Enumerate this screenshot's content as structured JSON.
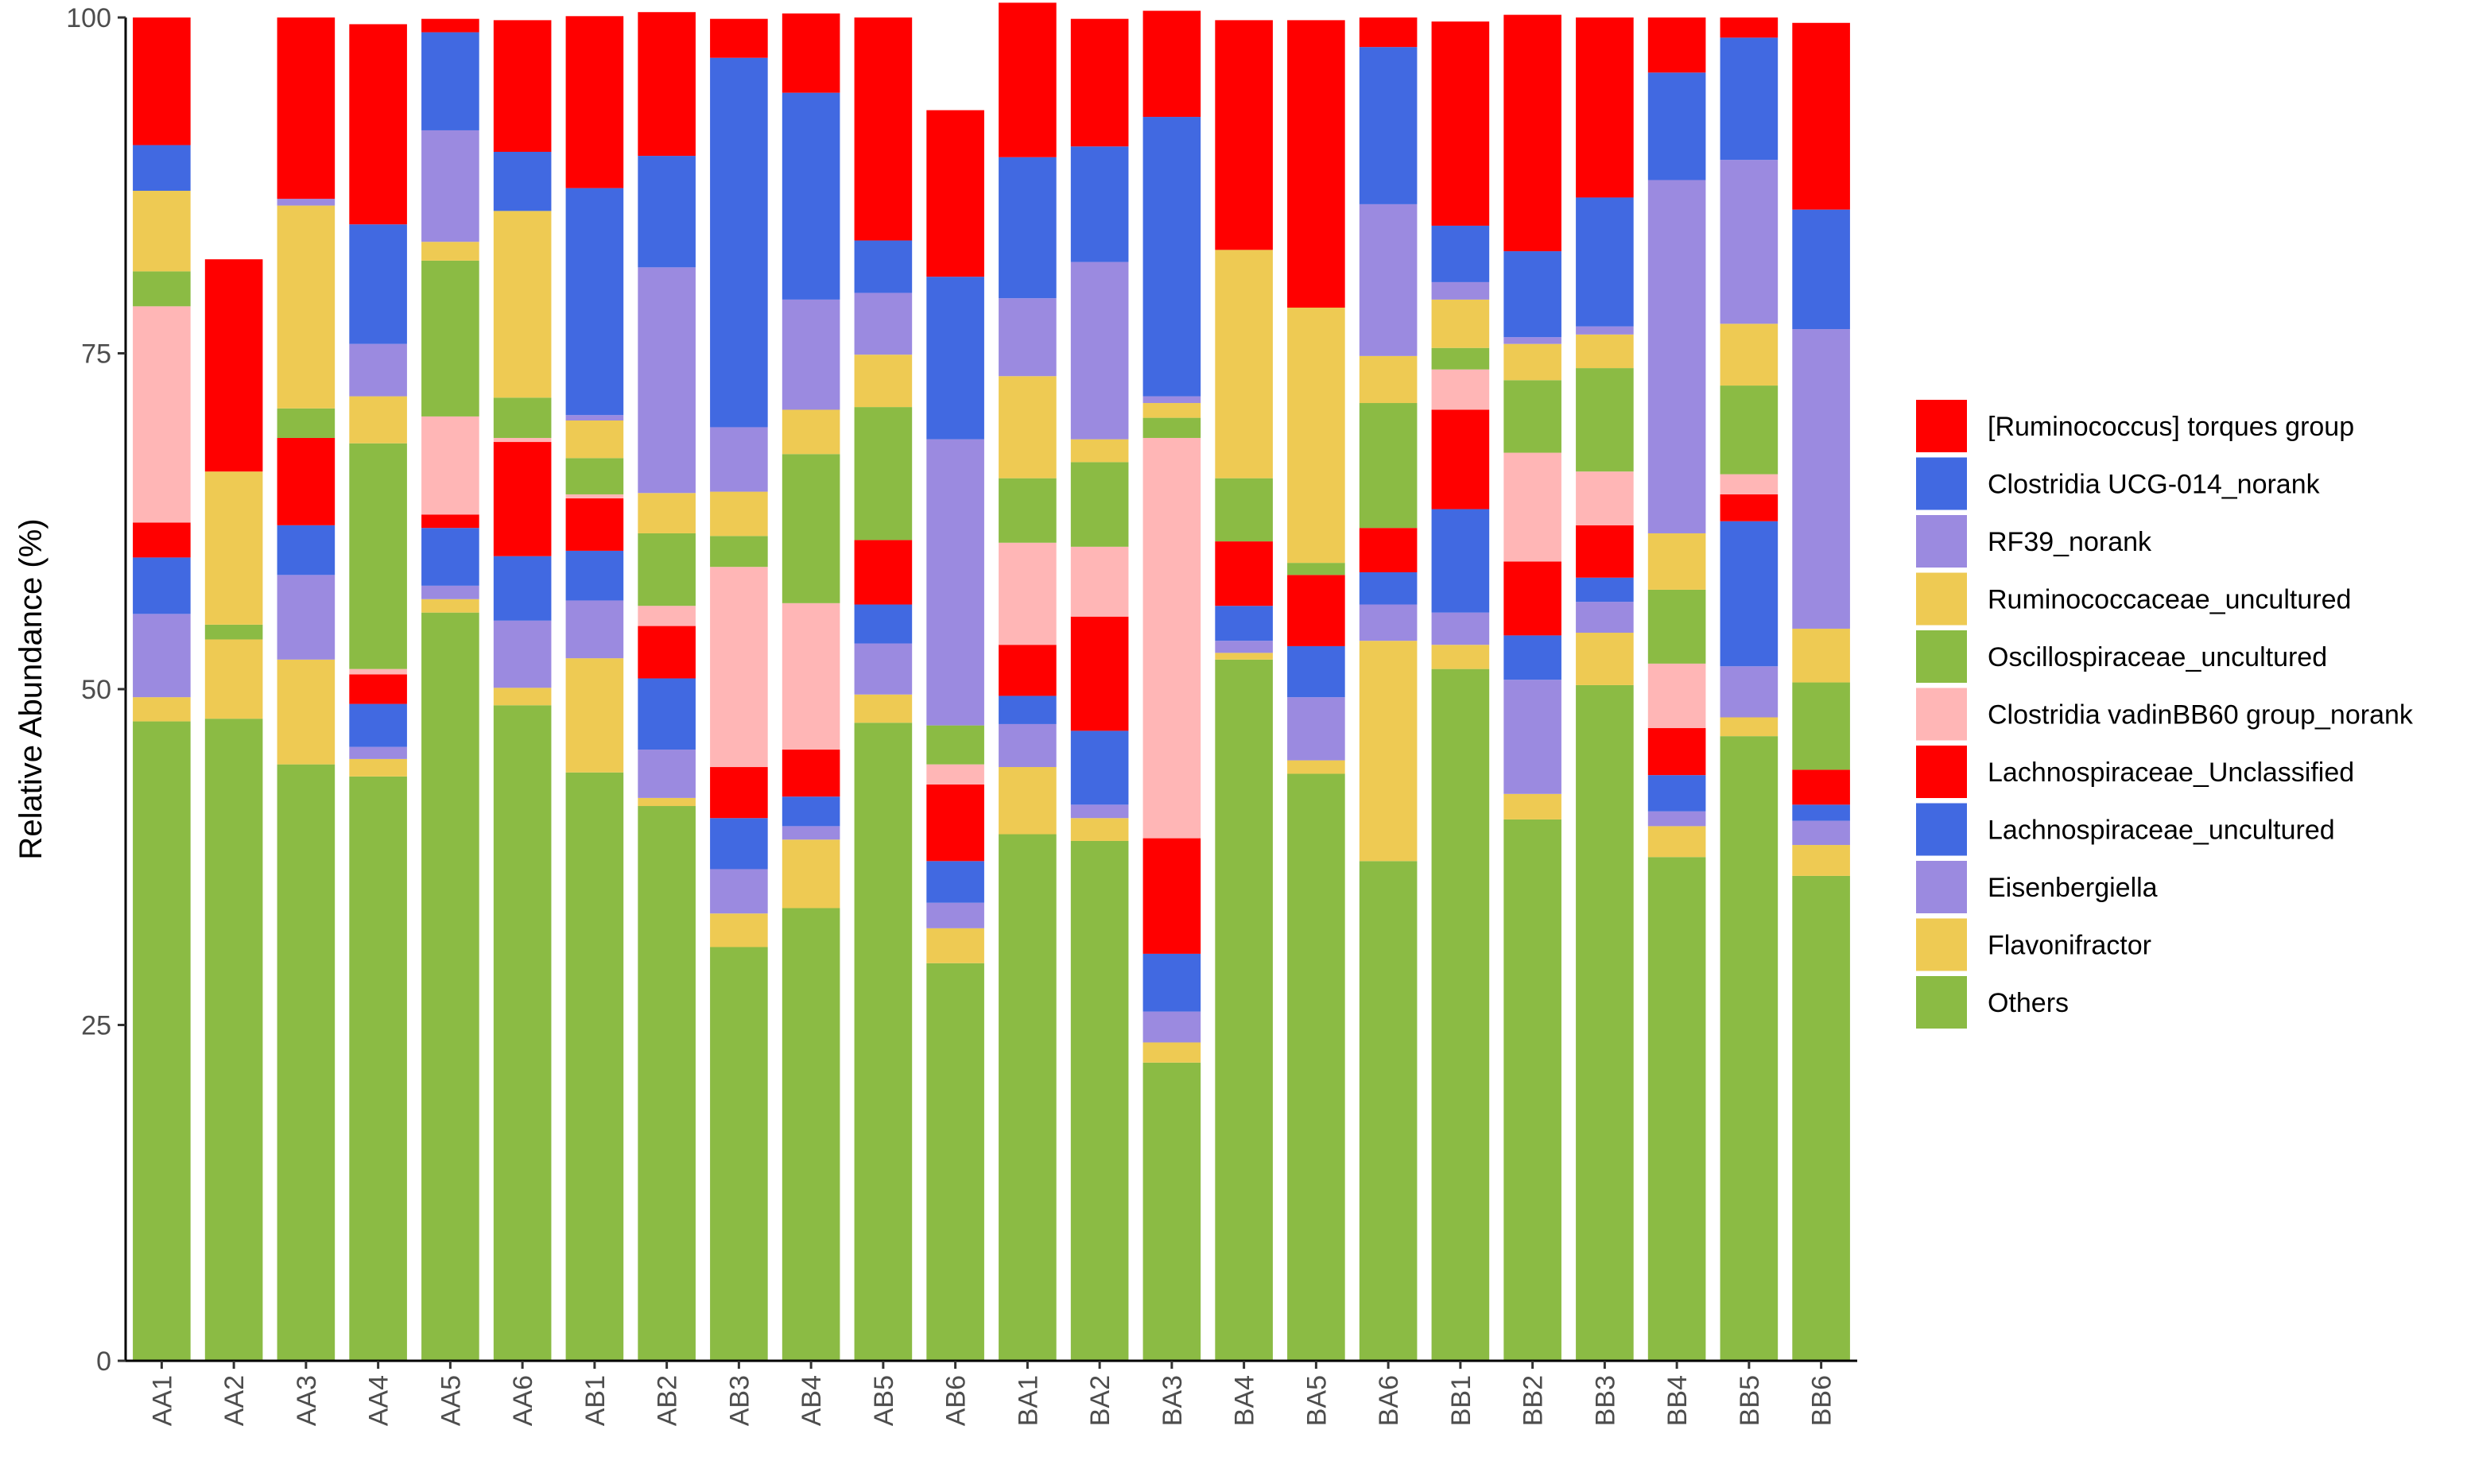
{
  "chart_data": {
    "type": "bar",
    "stacked": true,
    "title": "",
    "xlabel": "",
    "ylabel": "Relative Abundance (%)",
    "ylim": [
      0,
      100
    ],
    "yticks": [
      0,
      25,
      50,
      75,
      100
    ],
    "grid": false,
    "legend_position": "right",
    "categories": [
      "AA1",
      "AA2",
      "AA3",
      "AA4",
      "AA5",
      "AA6",
      "AB1",
      "AB2",
      "AB3",
      "AB4",
      "AB5",
      "AB6",
      "BA1",
      "BA2",
      "BA3",
      "BA4",
      "BA5",
      "BA6",
      "BB1",
      "BB2",
      "BB3",
      "BB4",
      "BB5",
      "BB6"
    ],
    "series": [
      {
        "name": "Others",
        "color": "#8BBB44",
        "values": [
          47.6,
          47.8,
          44.4,
          43.5,
          55.7,
          48.8,
          43.8,
          41.3,
          30.8,
          33.7,
          47.5,
          29.6,
          39.2,
          38.7,
          22.2,
          52.2,
          43.7,
          37.2,
          51.5,
          40.3,
          50.3,
          37.5,
          46.5,
          36.1
        ]
      },
      {
        "name": "Flavonifractor",
        "color": "#EECA53",
        "values": [
          1.8,
          5.9,
          7.8,
          1.3,
          1.0,
          1.3,
          8.5,
          0.6,
          2.5,
          5.1,
          2.1,
          2.6,
          5.0,
          1.7,
          1.5,
          0.5,
          1.0,
          16.4,
          1.8,
          1.9,
          3.9,
          2.3,
          1.4,
          2.3
        ]
      },
      {
        "name": "Eisenbergiella",
        "color": "#9B8AE0",
        "values": [
          6.2,
          0.0,
          6.3,
          0.9,
          1.0,
          5.0,
          4.3,
          3.6,
          3.3,
          1.0,
          3.8,
          1.9,
          3.2,
          1.0,
          2.3,
          0.9,
          4.7,
          2.7,
          2.4,
          8.5,
          2.3,
          1.1,
          3.8,
          1.8
        ]
      },
      {
        "name": "Lachnospiraceae_uncultured",
        "color": "#4169E1",
        "values": [
          4.2,
          0.0,
          3.7,
          3.2,
          4.3,
          4.8,
          3.7,
          5.3,
          3.8,
          2.2,
          2.9,
          3.1,
          2.1,
          5.5,
          4.3,
          2.6,
          3.8,
          2.4,
          7.7,
          3.3,
          1.8,
          2.7,
          10.8,
          1.2
        ]
      },
      {
        "name": "Lachnospiraceae_Unclassified",
        "color": "#FF0000",
        "values": [
          2.6,
          0.0,
          6.5,
          2.2,
          1.0,
          8.5,
          3.9,
          3.9,
          3.8,
          3.5,
          4.8,
          5.7,
          3.8,
          8.5,
          8.6,
          4.8,
          5.3,
          3.3,
          7.4,
          5.5,
          3.9,
          3.5,
          2.0,
          2.6
        ]
      },
      {
        "name": "Clostridia vadinBB60 group_norank",
        "color": "#FFB6B6",
        "values": [
          16.1,
          0.0,
          0.0,
          0.4,
          7.3,
          0.3,
          0.3,
          1.5,
          14.9,
          10.9,
          0.0,
          1.5,
          7.6,
          5.2,
          29.8,
          0.0,
          0.0,
          0.0,
          3.0,
          8.1,
          4.0,
          4.8,
          1.5,
          0.0
        ]
      },
      {
        "name": "Oscillospiraceae_uncultured",
        "color": "#8BBB44",
        "values": [
          2.6,
          1.1,
          2.2,
          16.8,
          11.6,
          3.0,
          2.7,
          5.4,
          2.3,
          11.1,
          9.9,
          2.9,
          4.8,
          6.3,
          1.5,
          4.7,
          0.9,
          9.3,
          1.6,
          5.4,
          7.7,
          5.5,
          6.6,
          6.5
        ]
      },
      {
        "name": "Ruminococcaceae_uncultured",
        "color": "#EECA53",
        "values": [
          6.0,
          11.4,
          15.1,
          3.5,
          1.4,
          13.9,
          2.8,
          3.0,
          3.3,
          3.3,
          3.9,
          0.0,
          7.6,
          1.7,
          1.1,
          17.0,
          19.0,
          3.5,
          3.6,
          2.7,
          2.5,
          4.2,
          4.6,
          4.0
        ]
      },
      {
        "name": "RF39_norank",
        "color": "#9B8AE0",
        "values": [
          0.0,
          0.0,
          0.5,
          3.9,
          8.3,
          0.0,
          0.4,
          16.8,
          4.8,
          8.2,
          4.6,
          21.3,
          5.8,
          13.2,
          0.5,
          0.0,
          0.0,
          11.3,
          1.3,
          0.5,
          0.6,
          26.3,
          12.2,
          22.3
        ]
      },
      {
        "name": "Clostridia UCG-014_norank",
        "color": "#4169E1",
        "values": [
          3.4,
          0.0,
          0.0,
          8.9,
          7.3,
          4.4,
          16.9,
          8.3,
          27.5,
          15.4,
          3.9,
          12.1,
          10.5,
          8.6,
          20.8,
          0.0,
          0.0,
          11.7,
          4.2,
          6.4,
          9.6,
          8.0,
          9.1,
          8.9
        ]
      },
      {
        "name": "[Ruminococcus] torques group",
        "color": "#FF0000",
        "values": [
          9.5,
          15.8,
          13.5,
          14.9,
          1.0,
          9.8,
          12.8,
          10.7,
          2.9,
          5.9,
          16.6,
          12.4,
          11.5,
          9.5,
          7.9,
          17.1,
          21.4,
          2.2,
          15.2,
          17.6,
          13.4,
          4.1,
          1.5,
          13.9
        ]
      }
    ]
  }
}
